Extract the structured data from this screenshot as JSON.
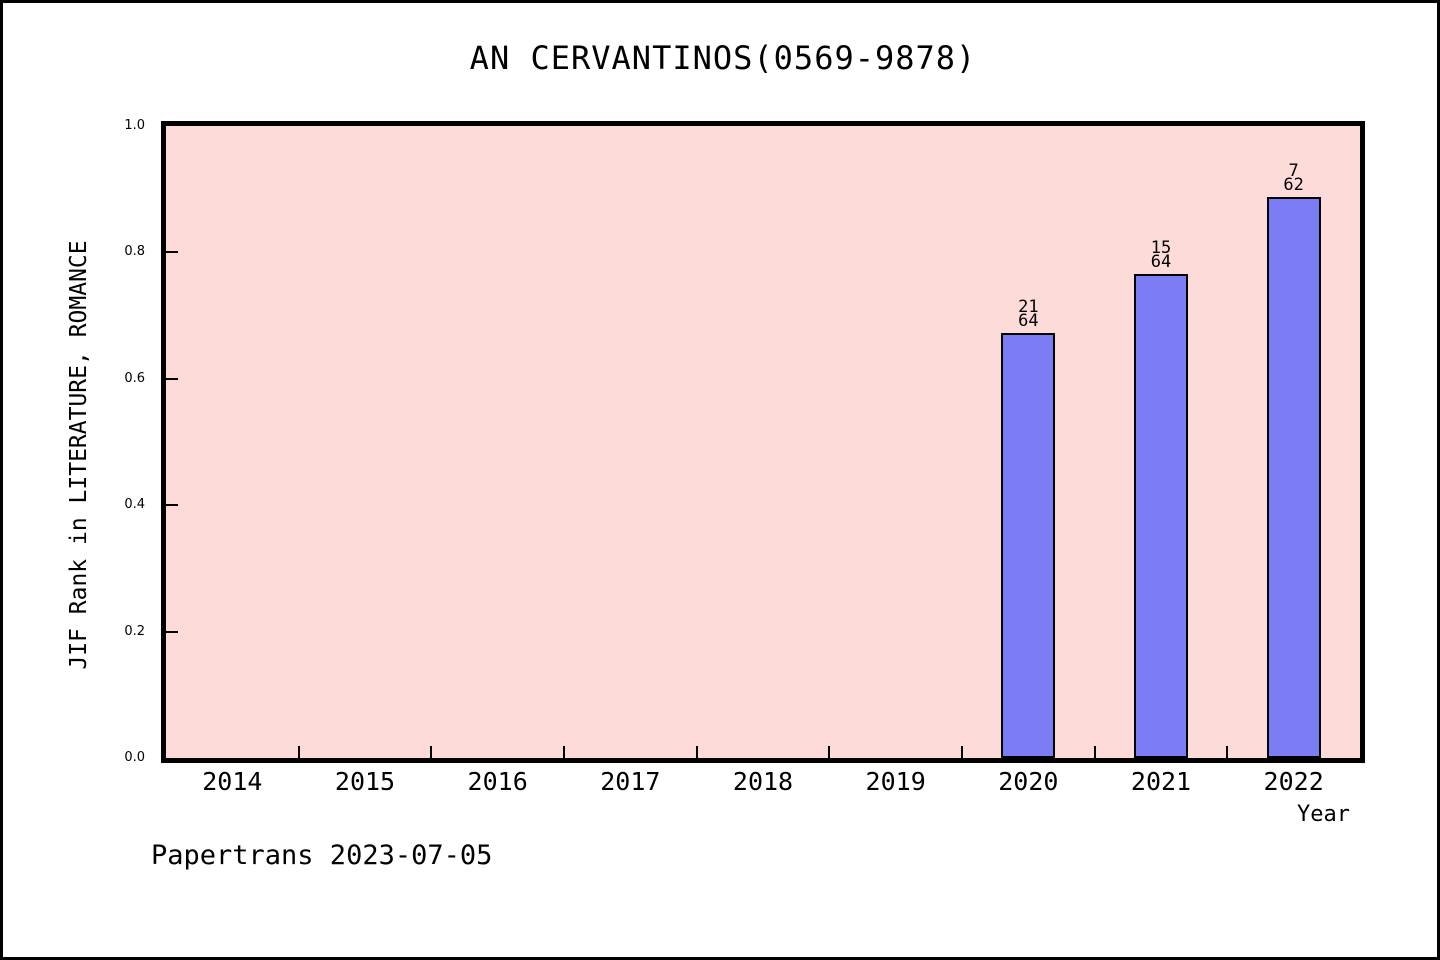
{
  "chart_data": {
    "type": "bar",
    "title": "AN CERVANTINOS(0569-9878)",
    "xlabel": "Year",
    "ylabel": "JIF Rank in LITERATURE, ROMANCE",
    "categories": [
      "2014",
      "2015",
      "2016",
      "2017",
      "2018",
      "2019",
      "2020",
      "2021",
      "2022"
    ],
    "values": [
      null,
      null,
      null,
      null,
      null,
      null,
      0.672,
      0.766,
      0.887
    ],
    "bar_fraction_labels": [
      null,
      null,
      null,
      null,
      null,
      null,
      {
        "numerator": "21",
        "denominator": "64"
      },
      {
        "numerator": "15",
        "denominator": "64"
      },
      {
        "numerator": "7",
        "denominator": "62"
      }
    ],
    "ylim": [
      0,
      1
    ],
    "ytick_labels": [
      "0.0",
      "0.2",
      "0.4",
      "0.6",
      "0.8",
      "1.0"
    ],
    "ytick_values": [
      0.0,
      0.2,
      0.4,
      0.6,
      0.8,
      1.0
    ],
    "grid": false,
    "legend": "none",
    "colors": {
      "plot_background": "#fcdbd8",
      "bar_fill": "#7c7cf4",
      "bar_border": "#000000",
      "text": "#000000"
    }
  },
  "footer": {
    "text": "Papertrans 2023-07-05"
  }
}
